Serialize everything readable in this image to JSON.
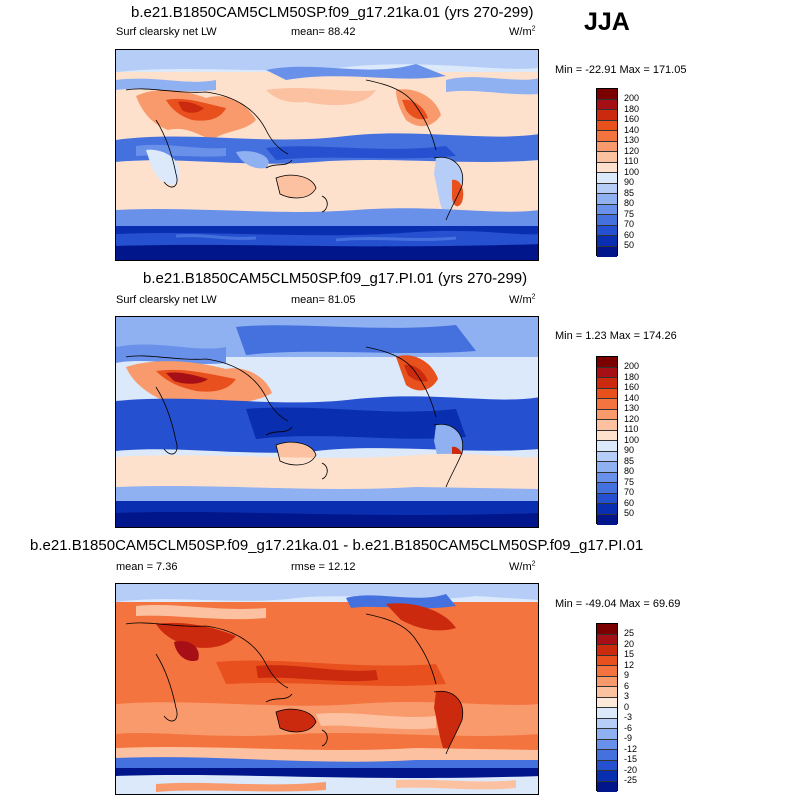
{
  "season": "JJA",
  "panels": [
    {
      "title": "b.e21.B1850CAM5CLM50SP.f09_g17.21ka.01 (yrs 270-299)",
      "left_label": "Surf clearsky net LW",
      "center_label": "mean=  88.42",
      "units": "W/m",
      "units_exp": "2",
      "minmax": "Min = -22.91 Max = 171.05",
      "colorbar_labels": [
        "200",
        "180",
        "160",
        "140",
        "130",
        "120",
        "110",
        "100",
        "90",
        "85",
        "80",
        "75",
        "70",
        "60",
        "50"
      ],
      "colorbar_colors": [
        "#7a0000",
        "#a50f15",
        "#cb2a0e",
        "#e8501e",
        "#f4743f",
        "#f99a6c",
        "#fcc1a0",
        "#fde1cc",
        "#dbe9fb",
        "#b5cdf7",
        "#8fb0f1",
        "#6a91ea",
        "#4571df",
        "#2550d0",
        "#0a2eb0",
        "#00168a"
      ]
    },
    {
      "title": "b.e21.B1850CAM5CLM50SP.f09_g17.PI.01 (yrs 270-299)",
      "left_label": "Surf clearsky net LW",
      "center_label": "mean=  81.05",
      "units": "W/m",
      "units_exp": "2",
      "minmax": "Min =   1.23 Max = 174.26",
      "colorbar_labels": [
        "200",
        "180",
        "160",
        "140",
        "130",
        "120",
        "110",
        "100",
        "90",
        "85",
        "80",
        "75",
        "70",
        "60",
        "50"
      ],
      "colorbar_colors": [
        "#7a0000",
        "#a50f15",
        "#cb2a0e",
        "#e8501e",
        "#f4743f",
        "#f99a6c",
        "#fcc1a0",
        "#fde1cc",
        "#dbe9fb",
        "#b5cdf7",
        "#8fb0f1",
        "#6a91ea",
        "#4571df",
        "#2550d0",
        "#0a2eb0",
        "#00168a"
      ]
    },
    {
      "title": "b.e21.B1850CAM5CLM50SP.f09_g17.21ka.01 - b.e21.B1850CAM5CLM50SP.f09_g17.PI.01",
      "left_label": "mean =  7.36",
      "center_label": "rmse =  12.12",
      "units": "W/m",
      "units_exp": "2",
      "minmax": "Min = -49.04 Max =  69.69",
      "colorbar_labels": [
        "25",
        "20",
        "15",
        "12",
        "9",
        "6",
        "3",
        "0",
        "-3",
        "-6",
        "-9",
        "-12",
        "-15",
        "-20",
        "-25"
      ],
      "colorbar_colors": [
        "#7a0000",
        "#a50f15",
        "#cb2a0e",
        "#e8501e",
        "#f4743f",
        "#f99a6c",
        "#fcc1a0",
        "#fde8da",
        "#dbe9fb",
        "#b5cdf7",
        "#8fb0f1",
        "#6a91ea",
        "#4571df",
        "#2550d0",
        "#0a2eb0",
        "#00168a"
      ]
    }
  ]
}
